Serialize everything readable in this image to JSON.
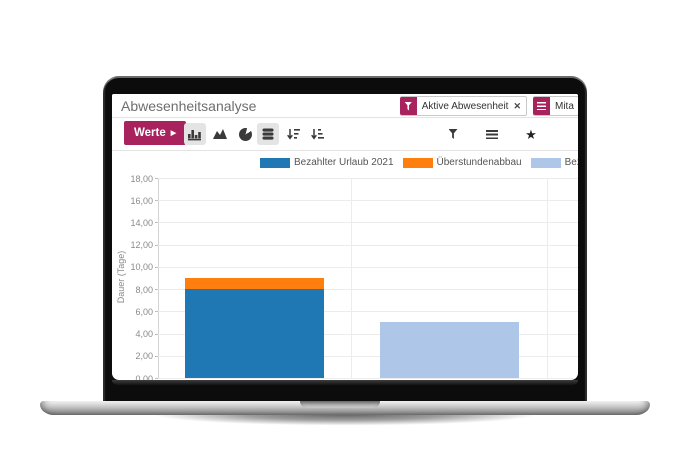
{
  "window": {
    "title": "Abwesenheitsanalyse"
  },
  "filters": [
    {
      "type": "filter",
      "label": "Aktive Abwesenheit",
      "removable": true
    },
    {
      "type": "groupby",
      "label": "Mita",
      "removable": false
    }
  ],
  "toolbar": {
    "measures_label": "Werte",
    "left_buttons": [
      "bar-chart",
      "area-chart",
      "pie-chart",
      "stacked",
      "sort-desc",
      "sort-asc"
    ],
    "active_buttons": [
      "bar-chart",
      "stacked"
    ],
    "right_buttons": [
      "filter",
      "group-by",
      "favorites"
    ]
  },
  "icons": {
    "caret": "▶",
    "star": "★",
    "close": "✕"
  },
  "chart_data": {
    "type": "bar",
    "stacked": true,
    "title": "",
    "xlabel": "",
    "ylabel": "Dauer (Tage)",
    "ylim": [
      0,
      18
    ],
    "ytick_step": 2,
    "yticks": [
      "18,00",
      "16,00",
      "14,00",
      "12,00",
      "10,00",
      "8,00",
      "6,00",
      "4,00",
      "2,00",
      "0,00"
    ],
    "grid": true,
    "legend_position": "top",
    "categories": [
      "",
      ""
    ],
    "series": [
      {
        "name": "Bezahlter Urlaub 2021",
        "color": "#1f77b4",
        "values": [
          8,
          0
        ]
      },
      {
        "name": "Überstundenabbau",
        "color": "#ff7f0e",
        "values": [
          1,
          0
        ]
      },
      {
        "name": "Bezahlter Ur",
        "color": "#aec7e8",
        "values": [
          0,
          5
        ]
      }
    ]
  },
  "colors": {
    "accent": "#a8235d",
    "icon_gray": "#3a3a3a",
    "grid_line": "#ececec",
    "tick_text": "#8a8a8a"
  }
}
